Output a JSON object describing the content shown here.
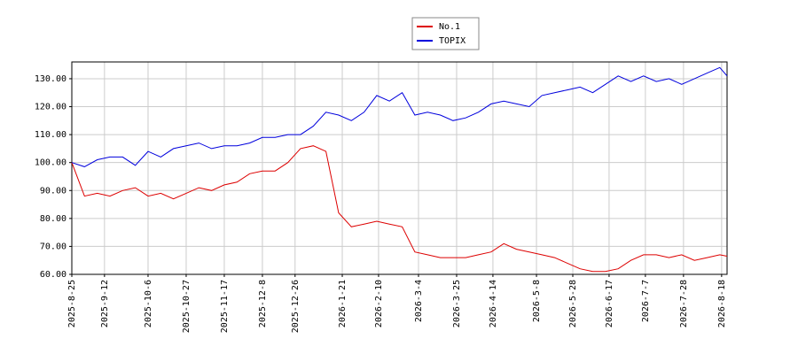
{
  "chart_data": {
    "type": "line",
    "x": [
      "2025-8-25",
      "2025-9-1",
      "2025-9-8",
      "2025-9-15",
      "2025-9-22",
      "2025-9-29",
      "2025-10-6",
      "2025-10-13",
      "2025-10-20",
      "2025-10-27",
      "2025-11-3",
      "2025-11-10",
      "2025-11-17",
      "2025-11-24",
      "2025-12-1",
      "2025-12-8",
      "2025-12-15",
      "2025-12-22",
      "2025-12-29",
      "2026-1-5",
      "2026-1-12",
      "2026-1-19",
      "2026-1-26",
      "2026-2-2",
      "2026-2-9",
      "2026-2-16",
      "2026-2-23",
      "2026-3-2",
      "2026-3-9",
      "2026-3-16",
      "2026-3-23",
      "2026-3-30",
      "2026-4-6",
      "2026-4-13",
      "2026-4-20",
      "2026-4-27",
      "2026-5-4",
      "2026-5-11",
      "2026-5-18",
      "2026-5-25",
      "2026-6-1",
      "2026-6-8",
      "2026-6-15",
      "2026-6-22",
      "2026-6-29",
      "2026-7-6",
      "2026-7-13",
      "2026-7-20",
      "2026-7-27",
      "2026-8-3",
      "2026-8-10",
      "2026-8-17",
      "2026-8-21"
    ],
    "series": [
      {
        "name": "No.1",
        "color": "#dd0000",
        "values": [
          100,
          88,
          89,
          88,
          90,
          91,
          88,
          89,
          87,
          89,
          91,
          90,
          92,
          93,
          96,
          97,
          97,
          100,
          105,
          106,
          104,
          82,
          77,
          78,
          79,
          78,
          77,
          68,
          67,
          66,
          66,
          66,
          67,
          68,
          71,
          69,
          68,
          67,
          66,
          64,
          62,
          61,
          61,
          62,
          65,
          67,
          67,
          66,
          67,
          65,
          66,
          67,
          66.5
        ]
      },
      {
        "name": "TOPIX",
        "color": "#0000dd",
        "values": [
          100,
          98.5,
          101,
          102,
          102,
          99,
          104,
          102,
          105,
          106,
          107,
          105,
          106,
          106,
          107,
          109,
          109,
          110,
          110,
          113,
          118,
          117,
          115,
          118,
          124,
          122,
          125,
          117,
          118,
          117,
          115,
          116,
          118,
          121,
          122,
          121,
          120,
          124,
          125,
          126,
          127,
          125,
          128,
          131,
          129,
          131,
          129,
          130,
          128,
          130,
          132,
          134,
          131
        ]
      }
    ],
    "xlim": [
      "2025-8-25",
      "2026-8-21"
    ],
    "xticks": [
      "2025-8-25",
      "2025-9-12",
      "2025-10-6",
      "2025-10-27",
      "2025-11-17",
      "2025-12-8",
      "2025-12-26",
      "2026-1-21",
      "2026-2-10",
      "2026-3-4",
      "2026-3-25",
      "2026-4-14",
      "2026-5-8",
      "2026-5-28",
      "2026-6-17",
      "2026-7-7",
      "2026-7-28",
      "2026-8-18"
    ],
    "ylim": [
      60,
      136
    ],
    "yticks": [
      {
        "value": 60,
        "label": "60.00"
      },
      {
        "value": 70,
        "label": "70.00"
      },
      {
        "value": 80,
        "label": "80.00"
      },
      {
        "value": 90,
        "label": "90.00"
      },
      {
        "value": 100,
        "label": "100.00"
      },
      {
        "value": 110,
        "label": "110.00"
      },
      {
        "value": 120,
        "label": "120.00"
      },
      {
        "value": 130,
        "label": "130.00"
      }
    ],
    "grid": true,
    "legend": "top"
  }
}
